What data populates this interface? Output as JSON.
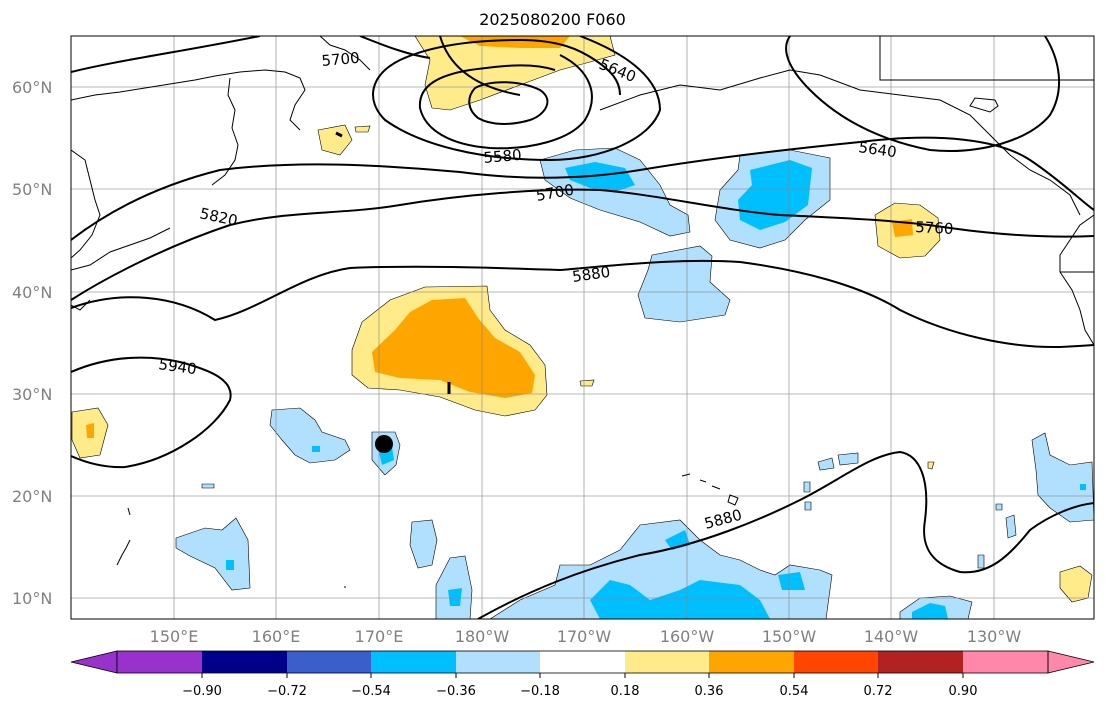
{
  "title": "2025080200 F060",
  "lat_labels": [
    "60°N",
    "50°N",
    "40°N",
    "30°N",
    "20°N",
    "10°N"
  ],
  "lon_labels": [
    "150°E",
    "160°E",
    "170°E",
    "180°W",
    "170°W",
    "160°W",
    "150°W",
    "140°W",
    "130°W"
  ],
  "contour_labels": [
    "5700",
    "5640",
    "5580",
    "5700",
    "5640",
    "5820",
    "5760",
    "5880",
    "5940",
    "5880"
  ],
  "colorbar": {
    "ticks": [
      "−0.90",
      "−0.72",
      "−0.54",
      "−0.36",
      "−0.18",
      "0.18",
      "0.36",
      "0.54",
      "0.72",
      "0.90"
    ],
    "colors": [
      "#9932cc",
      "#00008b",
      "#3a5fcd",
      "#00bfff",
      "#b0e0fe",
      "#ffffff",
      "#ffeb8a",
      "#ffa500",
      "#ff4500",
      "#b22222",
      "#ff88aa"
    ]
  }
}
